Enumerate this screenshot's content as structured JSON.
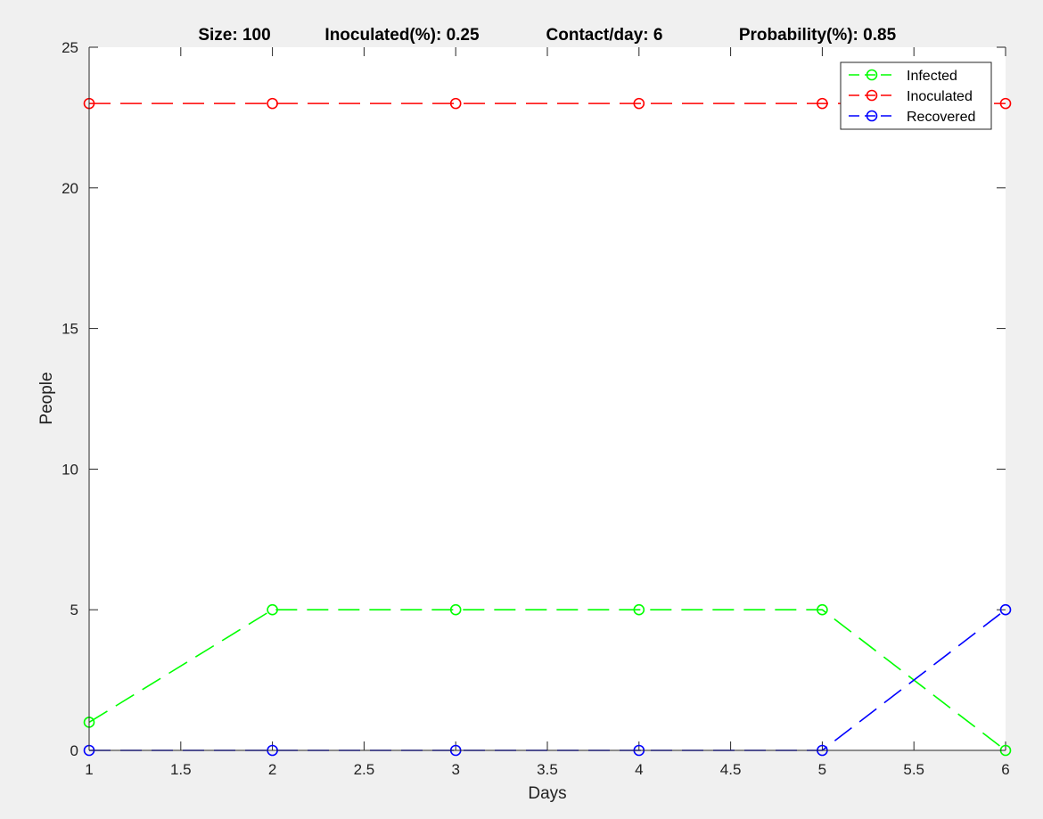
{
  "chart_data": {
    "type": "line",
    "title_parts": [
      "Size: 100",
      "Inoculated(%): 0.25",
      "Contact/day: 6",
      "Probability(%): 0.85"
    ],
    "xlabel": "Days",
    "ylabel": "People",
    "xlim": [
      1,
      6
    ],
    "ylim": [
      0,
      25
    ],
    "xticks": [
      1,
      1.5,
      2,
      2.5,
      3,
      3.5,
      4,
      4.5,
      5,
      5.5,
      6
    ],
    "yticks": [
      0,
      5,
      10,
      15,
      20,
      25
    ],
    "x": [
      1,
      2,
      3,
      4,
      5,
      6
    ],
    "series": [
      {
        "name": "Infected",
        "values": [
          1,
          5,
          5,
          5,
          5,
          0
        ],
        "color": "#00ff00",
        "line_style": "dashed",
        "marker": "circle"
      },
      {
        "name": "Inoculated",
        "values": [
          23,
          23,
          23,
          23,
          23,
          23
        ],
        "color": "#ff0000",
        "line_style": "dashed",
        "marker": "circle"
      },
      {
        "name": "Recovered",
        "values": [
          0,
          0,
          0,
          0,
          0,
          5
        ],
        "color": "#0000ff",
        "line_style": "dashed",
        "marker": "circle"
      }
    ],
    "legend_position": "top-right",
    "grid": false
  }
}
